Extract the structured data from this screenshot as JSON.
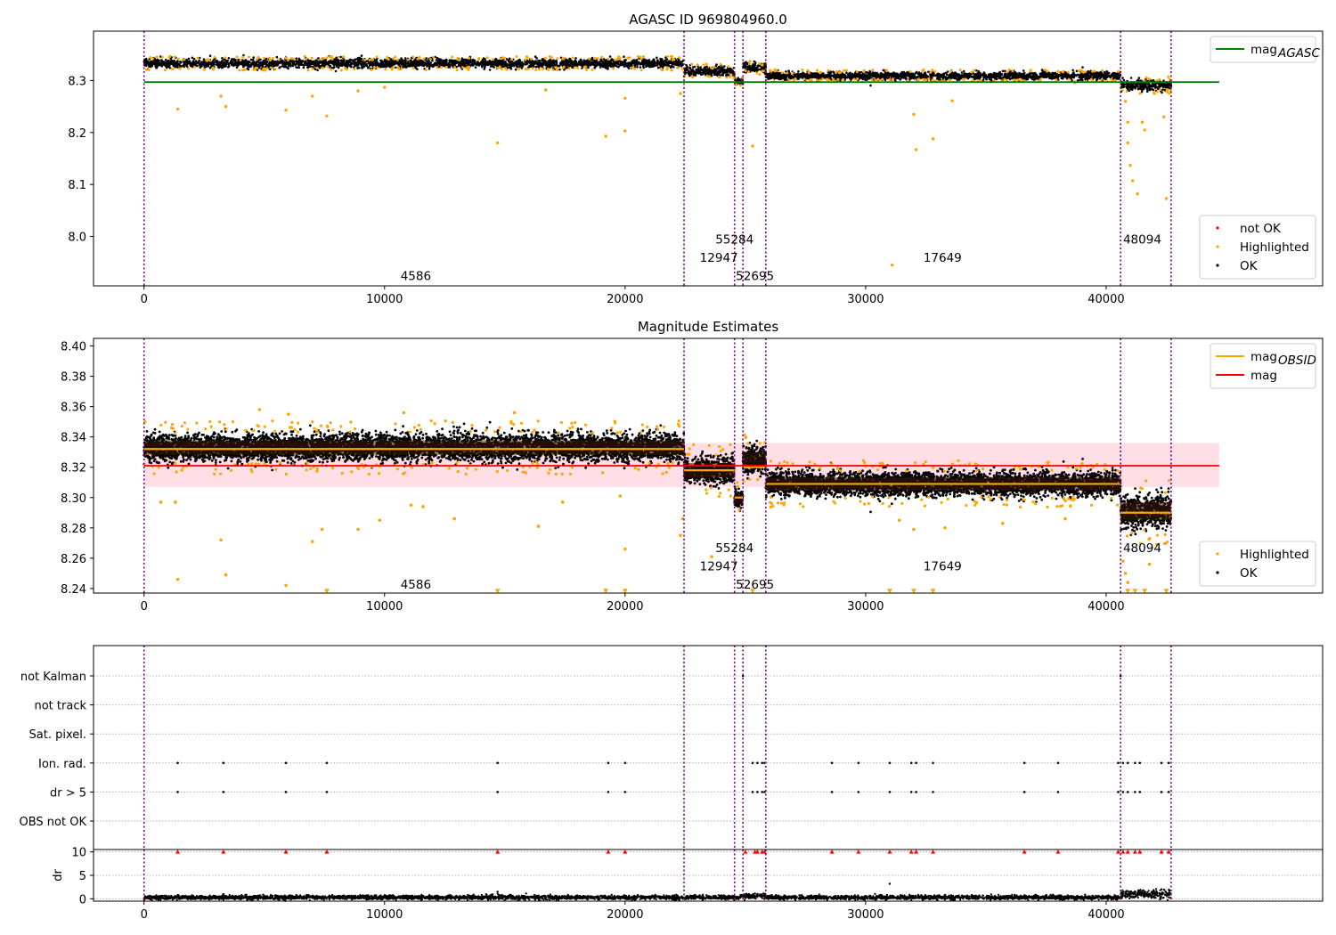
{
  "chart_data": [
    {
      "type": "scatter",
      "title": "AGASC ID 969804960.0",
      "xlabel": "",
      "ylabel": "",
      "xlim": [
        -2100,
        49000
      ],
      "ylim": [
        7.905,
        8.395
      ],
      "x_ticks": [
        0,
        10000,
        20000,
        30000,
        40000
      ],
      "y_ticks": [
        8.0,
        8.1,
        8.2,
        8.3
      ],
      "y_tick_decimals": 1,
      "obs_boundaries": [
        0,
        22450,
        24550,
        24900,
        25850,
        40600,
        42700
      ],
      "annotations": [
        {
          "text": "4586",
          "x": 11300,
          "y": 7.925
        },
        {
          "text": "12947",
          "x": 23900,
          "y": 7.96
        },
        {
          "text": "55284",
          "x": 24550,
          "y": 7.995
        },
        {
          "text": "52695",
          "x": 25400,
          "y": 7.925
        },
        {
          "text": "17649",
          "x": 33200,
          "y": 7.96
        },
        {
          "text": "48094",
          "x": 41500,
          "y": 7.995
        }
      ],
      "series": [
        {
          "name": "OK",
          "color": "#000000",
          "segments": [
            {
              "x0": 0,
              "x1": 22450,
              "center": 8.333,
              "spread": 0.008
            },
            {
              "x0": 22450,
              "x1": 24550,
              "center": 8.318,
              "spread": 0.008
            },
            {
              "x0": 24550,
              "x1": 24900,
              "center": 8.299,
              "spread": 0.005
            },
            {
              "x0": 24900,
              "x1": 25850,
              "center": 8.325,
              "spread": 0.008
            },
            {
              "x0": 25850,
              "x1": 40600,
              "center": 8.309,
              "spread": 0.007
            },
            {
              "x0": 40600,
              "x1": 42700,
              "center": 8.291,
              "spread": 0.01
            }
          ]
        },
        {
          "name": "Highlighted",
          "color": "#ffa500",
          "points": [
            [
              1400,
              8.245
            ],
            [
              3200,
              8.27
            ],
            [
              3400,
              8.25
            ],
            [
              5900,
              8.243
            ],
            [
              7000,
              8.27
            ],
            [
              7600,
              8.232
            ],
            [
              8900,
              8.28
            ],
            [
              10000,
              8.287
            ],
            [
              14700,
              8.18
            ],
            [
              16700,
              8.282
            ],
            [
              19200,
              8.193
            ],
            [
              20000,
              8.203
            ],
            [
              20000,
              8.266
            ],
            [
              22300,
              8.275
            ],
            [
              25300,
              8.174
            ],
            [
              25700,
              8.33
            ],
            [
              31100,
              7.945
            ],
            [
              32000,
              8.235
            ],
            [
              32100,
              8.167
            ],
            [
              32800,
              8.188
            ],
            [
              33600,
              8.261
            ],
            [
              38700,
              8.296
            ],
            [
              40800,
              8.26
            ],
            [
              40900,
              8.22
            ],
            [
              40900,
              8.18
            ],
            [
              41000,
              8.137
            ],
            [
              41100,
              8.107
            ],
            [
              41300,
              8.082
            ],
            [
              41500,
              8.22
            ],
            [
              41600,
              8.205
            ],
            [
              42400,
              8.23
            ],
            [
              42500,
              8.073
            ]
          ]
        },
        {
          "name": "not OK",
          "color": "#ff0000",
          "points": []
        }
      ],
      "lines": [
        {
          "name": "mag$_{AGASC}$",
          "color": "#008000",
          "y": 8.297,
          "x0": 0,
          "x1": 44700
        }
      ],
      "legends": [
        {
          "position": "top-right",
          "entries": [
            {
              "label": "mag",
              "sub": "AGASC",
              "kind": "line",
              "color": "#008000"
            }
          ]
        },
        {
          "position": "lower-right",
          "entries": [
            {
              "label": "not OK",
              "kind": "marker",
              "color": "#ff0000"
            },
            {
              "label": "Highlighted",
              "kind": "marker",
              "color": "#ffa500"
            },
            {
              "label": "OK",
              "kind": "marker",
              "color": "#000000"
            }
          ]
        }
      ]
    },
    {
      "type": "scatter",
      "title": "Magnitude Estimates",
      "xlabel": "",
      "ylabel": "",
      "xlim": [
        -2100,
        49000
      ],
      "ylim": [
        8.237,
        8.405
      ],
      "x_ticks": [
        0,
        10000,
        20000,
        30000,
        40000
      ],
      "y_ticks": [
        8.24,
        8.26,
        8.28,
        8.3,
        8.32,
        8.34,
        8.36,
        8.38,
        8.4
      ],
      "y_tick_decimals": 2,
      "obs_boundaries": [
        0,
        22450,
        24550,
        24900,
        25850,
        40600,
        42700
      ],
      "annotations": [
        {
          "text": "4586",
          "x": 11300,
          "y": 8.243
        },
        {
          "text": "12947",
          "x": 23900,
          "y": 8.255
        },
        {
          "text": "55284",
          "x": 24550,
          "y": 8.267
        },
        {
          "text": "52695",
          "x": 25400,
          "y": 8.243
        },
        {
          "text": "17649",
          "x": 33200,
          "y": 8.255
        },
        {
          "text": "48094",
          "x": 41500,
          "y": 8.267
        }
      ],
      "band": {
        "y0": 8.307,
        "y1": 8.336,
        "x0": 0,
        "x1": 44700,
        "color": "#ffc0cb"
      },
      "series": [
        {
          "name": "OK",
          "color": "#000000",
          "segments": [
            {
              "x0": 0,
              "x1": 22450,
              "center": 8.333,
              "spread": 0.008
            },
            {
              "x0": 22450,
              "x1": 24550,
              "center": 8.318,
              "spread": 0.008
            },
            {
              "x0": 24550,
              "x1": 24900,
              "center": 8.299,
              "spread": 0.005
            },
            {
              "x0": 24900,
              "x1": 25850,
              "center": 8.325,
              "spread": 0.008
            },
            {
              "x0": 25850,
              "x1": 40600,
              "center": 8.309,
              "spread": 0.007
            },
            {
              "x0": 40600,
              "x1": 42700,
              "center": 8.291,
              "spread": 0.01
            }
          ]
        },
        {
          "name": "Highlighted",
          "color": "#ffa500",
          "points": [
            [
              700,
              8.297
            ],
            [
              1300,
              8.297
            ],
            [
              1400,
              8.246
            ],
            [
              3200,
              8.272
            ],
            [
              3400,
              8.249
            ],
            [
              4800,
              8.358
            ],
            [
              5900,
              8.242
            ],
            [
              6000,
              8.355
            ],
            [
              7000,
              8.271
            ],
            [
              7400,
              8.279
            ],
            [
              8900,
              8.279
            ],
            [
              9800,
              8.285
            ],
            [
              10800,
              8.356
            ],
            [
              11100,
              8.295
            ],
            [
              11600,
              8.294
            ],
            [
              12900,
              8.286
            ],
            [
              15400,
              8.356
            ],
            [
              16400,
              8.281
            ],
            [
              17400,
              8.297
            ],
            [
              19800,
              8.301
            ],
            [
              20000,
              8.266
            ],
            [
              22300,
              8.275
            ],
            [
              22400,
              8.286
            ],
            [
              23600,
              8.261
            ],
            [
              31400,
              8.285
            ],
            [
              32000,
              8.279
            ],
            [
              33300,
              8.28
            ],
            [
              35700,
              8.283
            ],
            [
              38300,
              8.286
            ],
            [
              40700,
              8.258
            ],
            [
              40800,
              8.25
            ],
            [
              40900,
              8.244
            ],
            [
              41800,
              8.256
            ]
          ]
        },
        {
          "name": "Highlighted-limit",
          "color": "#ffa500",
          "points": [
            [
              7600,
              8.238
            ],
            [
              14700,
              8.238
            ],
            [
              19200,
              8.238
            ],
            [
              20000,
              8.238
            ],
            [
              25300,
              8.238
            ],
            [
              31000,
              8.238
            ],
            [
              32000,
              8.238
            ],
            [
              32800,
              8.238
            ],
            [
              40900,
              8.238
            ],
            [
              41200,
              8.238
            ],
            [
              41600,
              8.238
            ],
            [
              42500,
              8.238
            ]
          ]
        }
      ],
      "lines": [
        {
          "name": "mag",
          "color": "#ff0000",
          "y": 8.321,
          "x0": 0,
          "x1": 44700
        }
      ],
      "obs_means": [
        {
          "x0": 0,
          "x1": 22450,
          "y": 8.332
        },
        {
          "x0": 22450,
          "x1": 24550,
          "y": 8.318
        },
        {
          "x0": 24550,
          "x1": 24900,
          "y": 8.3
        },
        {
          "x0": 24900,
          "x1": 25850,
          "y": 8.32
        },
        {
          "x0": 25850,
          "x1": 40600,
          "y": 8.309
        },
        {
          "x0": 40600,
          "x1": 42700,
          "y": 8.29
        }
      ],
      "obs_mean_color": "#ffa500",
      "legends": [
        {
          "position": "top-right",
          "entries": [
            {
              "label": "mag",
              "sub": "OBSID",
              "kind": "line",
              "color": "#ffa500"
            },
            {
              "label": "mag",
              "kind": "line",
              "color": "#ff0000"
            }
          ]
        },
        {
          "position": "lower-right",
          "entries": [
            {
              "label": "Highlighted",
              "kind": "marker",
              "color": "#ffa500"
            },
            {
              "label": "OK",
              "kind": "marker",
              "color": "#000000"
            }
          ]
        }
      ]
    },
    {
      "type": "scatter",
      "title": "",
      "xlabel": "",
      "ylabel": "",
      "xlim": [
        -2100,
        49000
      ],
      "categories": [
        "OBS not OK",
        "dr > 5",
        "Ion. rad.",
        "Sat. pixel.",
        "not track",
        "not Kalman"
      ],
      "obs_boundaries": [
        0,
        22450,
        24550,
        24900,
        25850,
        40600,
        42700
      ],
      "flags": {
        "not Kalman": [
          24900,
          40600
        ],
        "Ion. rad.": [
          1400,
          3300,
          5900,
          7600,
          14700,
          19300,
          20000,
          25300,
          25500,
          25700,
          25800,
          28600,
          29700,
          31000,
          31900,
          32100,
          32800,
          36600,
          38000,
          40500,
          40700,
          40900,
          41200,
          41400,
          42300,
          42600
        ],
        "dr > 5": [
          1400,
          3300,
          5900,
          7600,
          14700,
          19300,
          20000,
          25300,
          25500,
          25700,
          25800,
          28600,
          29700,
          31000,
          31900,
          32100,
          32800,
          36600,
          38000,
          40500,
          40700,
          40900,
          41200,
          41400,
          42300,
          42600
        ]
      },
      "marker_color": "#000000"
    },
    {
      "type": "scatter",
      "title": "",
      "xlabel": "",
      "ylabel": "dr",
      "xlim": [
        -2100,
        49000
      ],
      "ylim": [
        -0.5,
        10.5
      ],
      "x_ticks": [
        0,
        10000,
        20000,
        30000,
        40000
      ],
      "y_ticks": [
        0,
        5,
        10
      ],
      "y_tick_decimals": 0,
      "obs_boundaries": [
        0,
        22450,
        24550,
        24900,
        25850,
        40600,
        42700
      ],
      "series": [
        {
          "name": "OK",
          "color": "#000000",
          "segments": [
            {
              "x0": 0,
              "x1": 24800,
              "center": 0.3,
              "spread": 0.4
            },
            {
              "x0": 24800,
              "x1": 25850,
              "center": 0.6,
              "spread": 0.5
            },
            {
              "x0": 25850,
              "x1": 40600,
              "center": 0.3,
              "spread": 0.4
            },
            {
              "x0": 40600,
              "x1": 42700,
              "center": 1.0,
              "spread": 0.8
            }
          ]
        },
        {
          "name": "dr>10",
          "color": "#ff0000",
          "marker": "triangle",
          "points": [
            [
              1400,
              10
            ],
            [
              3300,
              10
            ],
            [
              5900,
              10
            ],
            [
              7600,
              10
            ],
            [
              14700,
              10
            ],
            [
              19300,
              10
            ],
            [
              20000,
              10
            ],
            [
              25000,
              10
            ],
            [
              25400,
              10
            ],
            [
              25500,
              10
            ],
            [
              25700,
              10
            ],
            [
              25800,
              10
            ],
            [
              28600,
              10
            ],
            [
              29700,
              10
            ],
            [
              31000,
              10
            ],
            [
              31900,
              10
            ],
            [
              32100,
              10
            ],
            [
              32800,
              10
            ],
            [
              36600,
              10
            ],
            [
              38000,
              10
            ],
            [
              40500,
              10
            ],
            [
              40700,
              10
            ],
            [
              40900,
              10
            ],
            [
              41200,
              10
            ],
            [
              41400,
              10
            ],
            [
              42300,
              10
            ],
            [
              42600,
              10
            ]
          ]
        },
        {
          "name": "outliers",
          "color": "#000000",
          "points": [
            [
              3300,
              1.0
            ],
            [
              14700,
              1.5
            ],
            [
              31000,
              3.2
            ],
            [
              42300,
              2.0
            ]
          ]
        }
      ]
    }
  ]
}
